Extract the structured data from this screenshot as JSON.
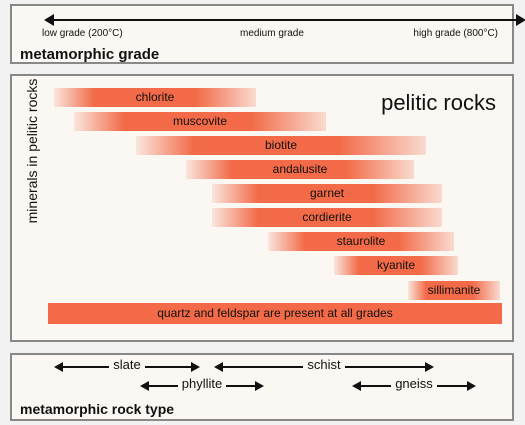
{
  "grade_panel": {
    "low": "low grade (200°C)",
    "medium": "medium grade",
    "high": "high grade (800°C)",
    "title": "metamorphic grade"
  },
  "minerals_panel": {
    "title": "pelitic rocks",
    "axis_label": "minerals in pelitic rocks",
    "minerals": [
      "chlorite",
      "muscovite",
      "biotite",
      "andalusite",
      "garnet",
      "cordierite",
      "staurolite",
      "kyanite",
      "sillimanite"
    ],
    "quartz_note": "quartz and feldspar are present at all grades"
  },
  "rock_panel": {
    "title": "metamorphic rock type",
    "types": [
      "slate",
      "schist",
      "phyllite",
      "gneiss"
    ]
  },
  "colors": {
    "bar": "#f26a47",
    "panel": "#fbf8f3",
    "border": "#888888"
  }
}
